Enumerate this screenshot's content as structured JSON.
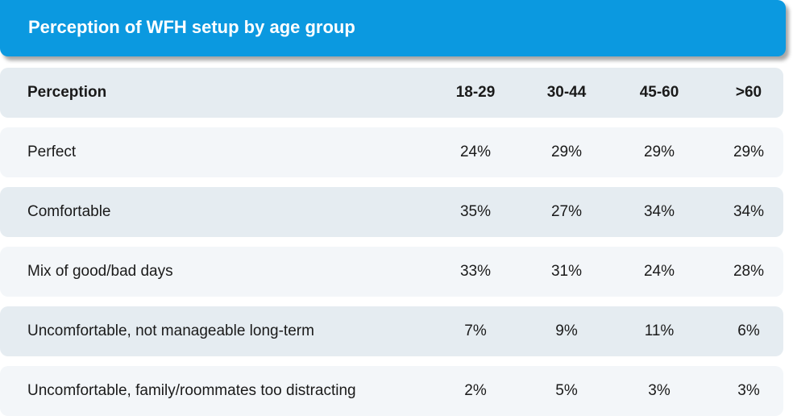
{
  "chart_data": {
    "type": "table",
    "title": "Perception of WFH setup by age group",
    "row_header": "Perception",
    "columns": [
      "18-29",
      "30-44",
      "45-60",
      ">60"
    ],
    "rows": [
      {
        "label": "Perfect",
        "values": [
          "24%",
          "29%",
          "29%",
          "29%"
        ]
      },
      {
        "label": "Comfortable",
        "values": [
          "35%",
          "27%",
          "34%",
          "34%"
        ]
      },
      {
        "label": "Mix of good/bad days",
        "values": [
          "33%",
          "31%",
          "24%",
          "28%"
        ]
      },
      {
        "label": "Uncomfortable, not manageable long-term",
        "values": [
          "7%",
          "9%",
          "11%",
          "6%"
        ]
      },
      {
        "label": "Uncomfortable, family/roommates too distracting",
        "values": [
          "2%",
          "5%",
          "3%",
          "3%"
        ]
      }
    ],
    "colors": {
      "title_bg": "#0b99e0",
      "header_bg": "#e5ecf1",
      "row_light": "#f3f6f9",
      "row_dark": "#e5ecf1"
    }
  }
}
